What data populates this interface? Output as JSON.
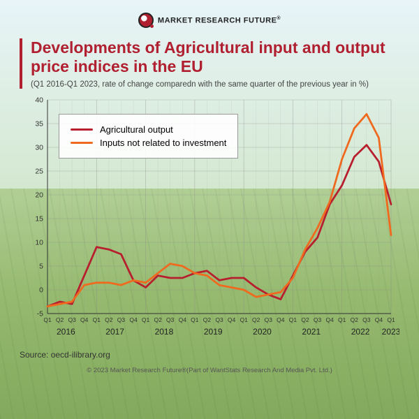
{
  "logo": {
    "brand_text": "MARKET RESEARCH FUTURE",
    "reg": "®"
  },
  "title": "Developments of Agricultural input and output price indices in the EU",
  "subtitle": "(Q1 2016-Q1 2023, rate of change comparedn with the same quarter of the previous year in %)",
  "source_prefix": "Source: ",
  "source": "oecd-ilibrary.org",
  "copyright": "© 2023 Market Research Future®(Part of WantStats Research And Media Pvt. Ltd.)",
  "chart": {
    "type": "line",
    "background_color": "transparent",
    "grid_color": "#888888",
    "axis_color": "#333333",
    "label_fontsize": 10.5,
    "quarter_fontsize": 8.5,
    "year_fontsize": 12,
    "ylim": [
      -5,
      40
    ],
    "ytick_step": 5,
    "yticks": [
      -5,
      0,
      5,
      10,
      15,
      20,
      25,
      30,
      35,
      40
    ],
    "years": [
      "2016",
      "2017",
      "2018",
      "2019",
      "2020",
      "2021",
      "2022",
      "2023"
    ],
    "quarters": [
      "Q1",
      "Q2",
      "Q3",
      "Q4",
      "Q1",
      "Q2",
      "Q3",
      "Q4",
      "Q1",
      "Q2",
      "Q3",
      "Q4",
      "Q1",
      "Q2",
      "Q3",
      "Q4",
      "Q1",
      "Q2",
      "Q3",
      "Q4",
      "Q1",
      "Q2",
      "Q3",
      "Q4",
      "Q1",
      "Q2",
      "Q3",
      "Q4",
      "Q1"
    ],
    "legend": {
      "position": "top-left",
      "border_color": "#999999",
      "background": "#ffffffE6",
      "fontsize": 13
    },
    "series": [
      {
        "name": "Agricultural output",
        "color": "#b81f2e",
        "line_width": 2.8,
        "values": [
          -3.5,
          -2.5,
          -3.0,
          3.0,
          9.0,
          8.5,
          7.5,
          2.0,
          0.5,
          3.0,
          2.5,
          2.5,
          3.5,
          4.0,
          2.0,
          2.5,
          2.5,
          0.5,
          -1.0,
          -2.0,
          3.0,
          8.0,
          11.0,
          18.0,
          22.0,
          28.0,
          30.5,
          27.0,
          18.0
        ]
      },
      {
        "name": "Inputs not related to investment",
        "color": "#ef6a1f",
        "line_width": 2.8,
        "values": [
          -3.5,
          -3.0,
          -2.5,
          1.0,
          1.5,
          1.5,
          1.0,
          2.0,
          1.5,
          3.5,
          5.5,
          5.0,
          3.5,
          3.0,
          1.0,
          0.5,
          0.0,
          -1.5,
          -1.0,
          -0.5,
          2.5,
          8.5,
          13.0,
          18.5,
          27.5,
          34.0,
          37.0,
          32.0,
          11.5
        ]
      }
    ]
  }
}
